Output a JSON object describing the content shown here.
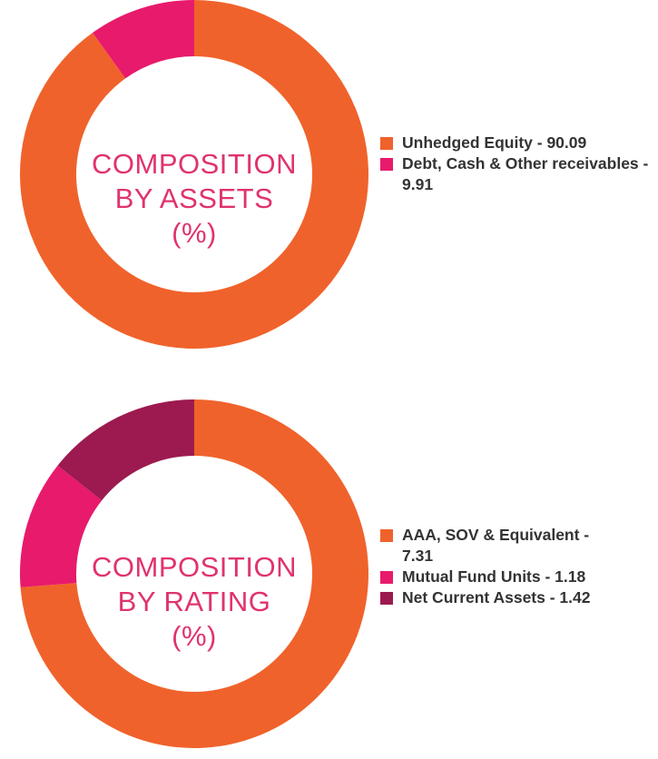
{
  "chart_data": [
    {
      "type": "pie",
      "style": "donut",
      "title_lines": [
        "COMPOSITION",
        "BY ASSETS",
        "(%)"
      ],
      "categories": [
        "Unhedged Equity",
        "Debt, Cash & Other receivables"
      ],
      "values": [
        90.09,
        9.91
      ],
      "colors": [
        "#f0622b",
        "#e81a6b"
      ],
      "legend_labels": [
        "Unhedged Equity - 90.09",
        "Debt, Cash & Other receivables - 9.91"
      ],
      "legend_position": "right"
    },
    {
      "type": "pie",
      "style": "donut",
      "title_lines": [
        "COMPOSITION",
        "BY RATING",
        "(%)"
      ],
      "categories": [
        "AAA, SOV & Equivalent",
        "Mutual Fund Units",
        "Net Current Assets"
      ],
      "values": [
        7.31,
        1.18,
        1.42
      ],
      "colors": [
        "#f0622b",
        "#e81a6b",
        "#9c1a4f"
      ],
      "legend_labels": [
        "AAA, SOV & Equivalent - 7.31",
        "Mutual Fund Units - 1.18",
        "Net Current Assets - 1.42"
      ],
      "legend_position": "right"
    }
  ]
}
